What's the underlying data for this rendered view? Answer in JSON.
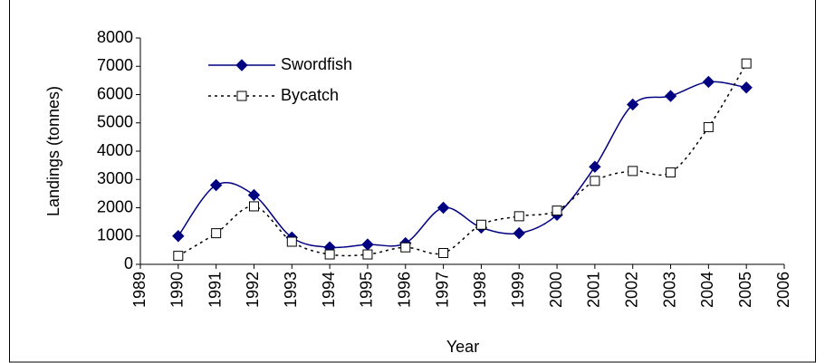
{
  "chart_data": {
    "type": "line",
    "x_label": "Year",
    "y_label": "Landings (tonnes)",
    "x": [
      1990,
      1991,
      1992,
      1993,
      1994,
      1995,
      1996,
      1997,
      1998,
      1999,
      2000,
      2001,
      2002,
      2003,
      2004,
      2005
    ],
    "series": [
      {
        "name": "Swordfish",
        "color": "#000080",
        "line_style": "solid",
        "marker": "diamond",
        "values": [
          1000,
          2800,
          2450,
          950,
          600,
          700,
          750,
          2000,
          1300,
          1100,
          1750,
          3450,
          5650,
          5950,
          6450,
          6250
        ]
      },
      {
        "name": "Bycatch",
        "color": "#000000",
        "line_style": "dotted",
        "marker": "square",
        "values": [
          300,
          1100,
          2050,
          800,
          350,
          350,
          600,
          400,
          1400,
          1700,
          1900,
          2950,
          3300,
          3250,
          4850,
          7100
        ]
      }
    ],
    "xlim": [
      1989,
      2006
    ],
    "xticks": [
      1989,
      1990,
      1991,
      1992,
      1993,
      1994,
      1995,
      1996,
      1997,
      1998,
      1999,
      2000,
      2001,
      2002,
      2003,
      2004,
      2005,
      2006
    ],
    "ylim": [
      0,
      8000
    ],
    "yticks": [
      0,
      1000,
      2000,
      3000,
      4000,
      5000,
      6000,
      7000,
      8000
    ],
    "grid": false,
    "legend_position": "upper left"
  }
}
